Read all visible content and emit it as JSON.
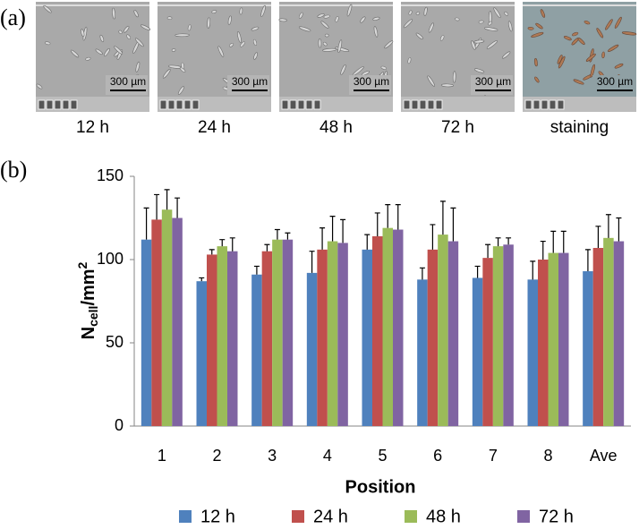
{
  "panel_a": {
    "label": "(a)",
    "images": [
      {
        "caption": "12 h",
        "scale_bar": "300 µm"
      },
      {
        "caption": "24 h",
        "scale_bar": "300 µm"
      },
      {
        "caption": "48 h",
        "scale_bar": "300 µm"
      },
      {
        "caption": "72 h",
        "scale_bar": "300 µm"
      },
      {
        "caption": "staining",
        "scale_bar": "300 µm"
      }
    ]
  },
  "panel_b_label": "(b)",
  "chart_data": {
    "type": "bar",
    "ylabel": {
      "base": "N",
      "subscript": "cell",
      "unit": "/mm",
      "superscript": "2"
    },
    "xlabel": "Position",
    "categories": [
      "1",
      "2",
      "3",
      "4",
      "5",
      "6",
      "7",
      "8",
      "Ave"
    ],
    "series": [
      {
        "name": "12 h",
        "color": "#4f81bd",
        "values": [
          112,
          87,
          91,
          92,
          106,
          88,
          89,
          88,
          93
        ],
        "errors": [
          19,
          2,
          5,
          13,
          9,
          7,
          7,
          11,
          13
        ]
      },
      {
        "name": "24 h",
        "color": "#c0504d",
        "values": [
          124,
          103,
          105,
          106,
          114,
          106,
          101,
          100,
          107
        ],
        "errors": [
          15,
          3,
          4,
          13,
          14,
          15,
          8,
          11,
          13
        ]
      },
      {
        "name": "48 h",
        "color": "#9bbb59",
        "values": [
          130,
          108,
          112,
          111,
          119,
          115,
          108,
          104,
          113
        ],
        "errors": [
          12,
          4,
          6,
          15,
          14,
          20,
          5,
          13,
          14
        ]
      },
      {
        "name": "72 h",
        "color": "#8064a2",
        "values": [
          125,
          105,
          112,
          110,
          118,
          111,
          109,
          104,
          111
        ],
        "errors": [
          12,
          8,
          4,
          14,
          15,
          20,
          4,
          13,
          14
        ]
      }
    ],
    "ylim": [
      0,
      150
    ],
    "yticks": [
      0,
      50,
      100,
      150
    ],
    "grid": false,
    "legend": "bottom"
  }
}
